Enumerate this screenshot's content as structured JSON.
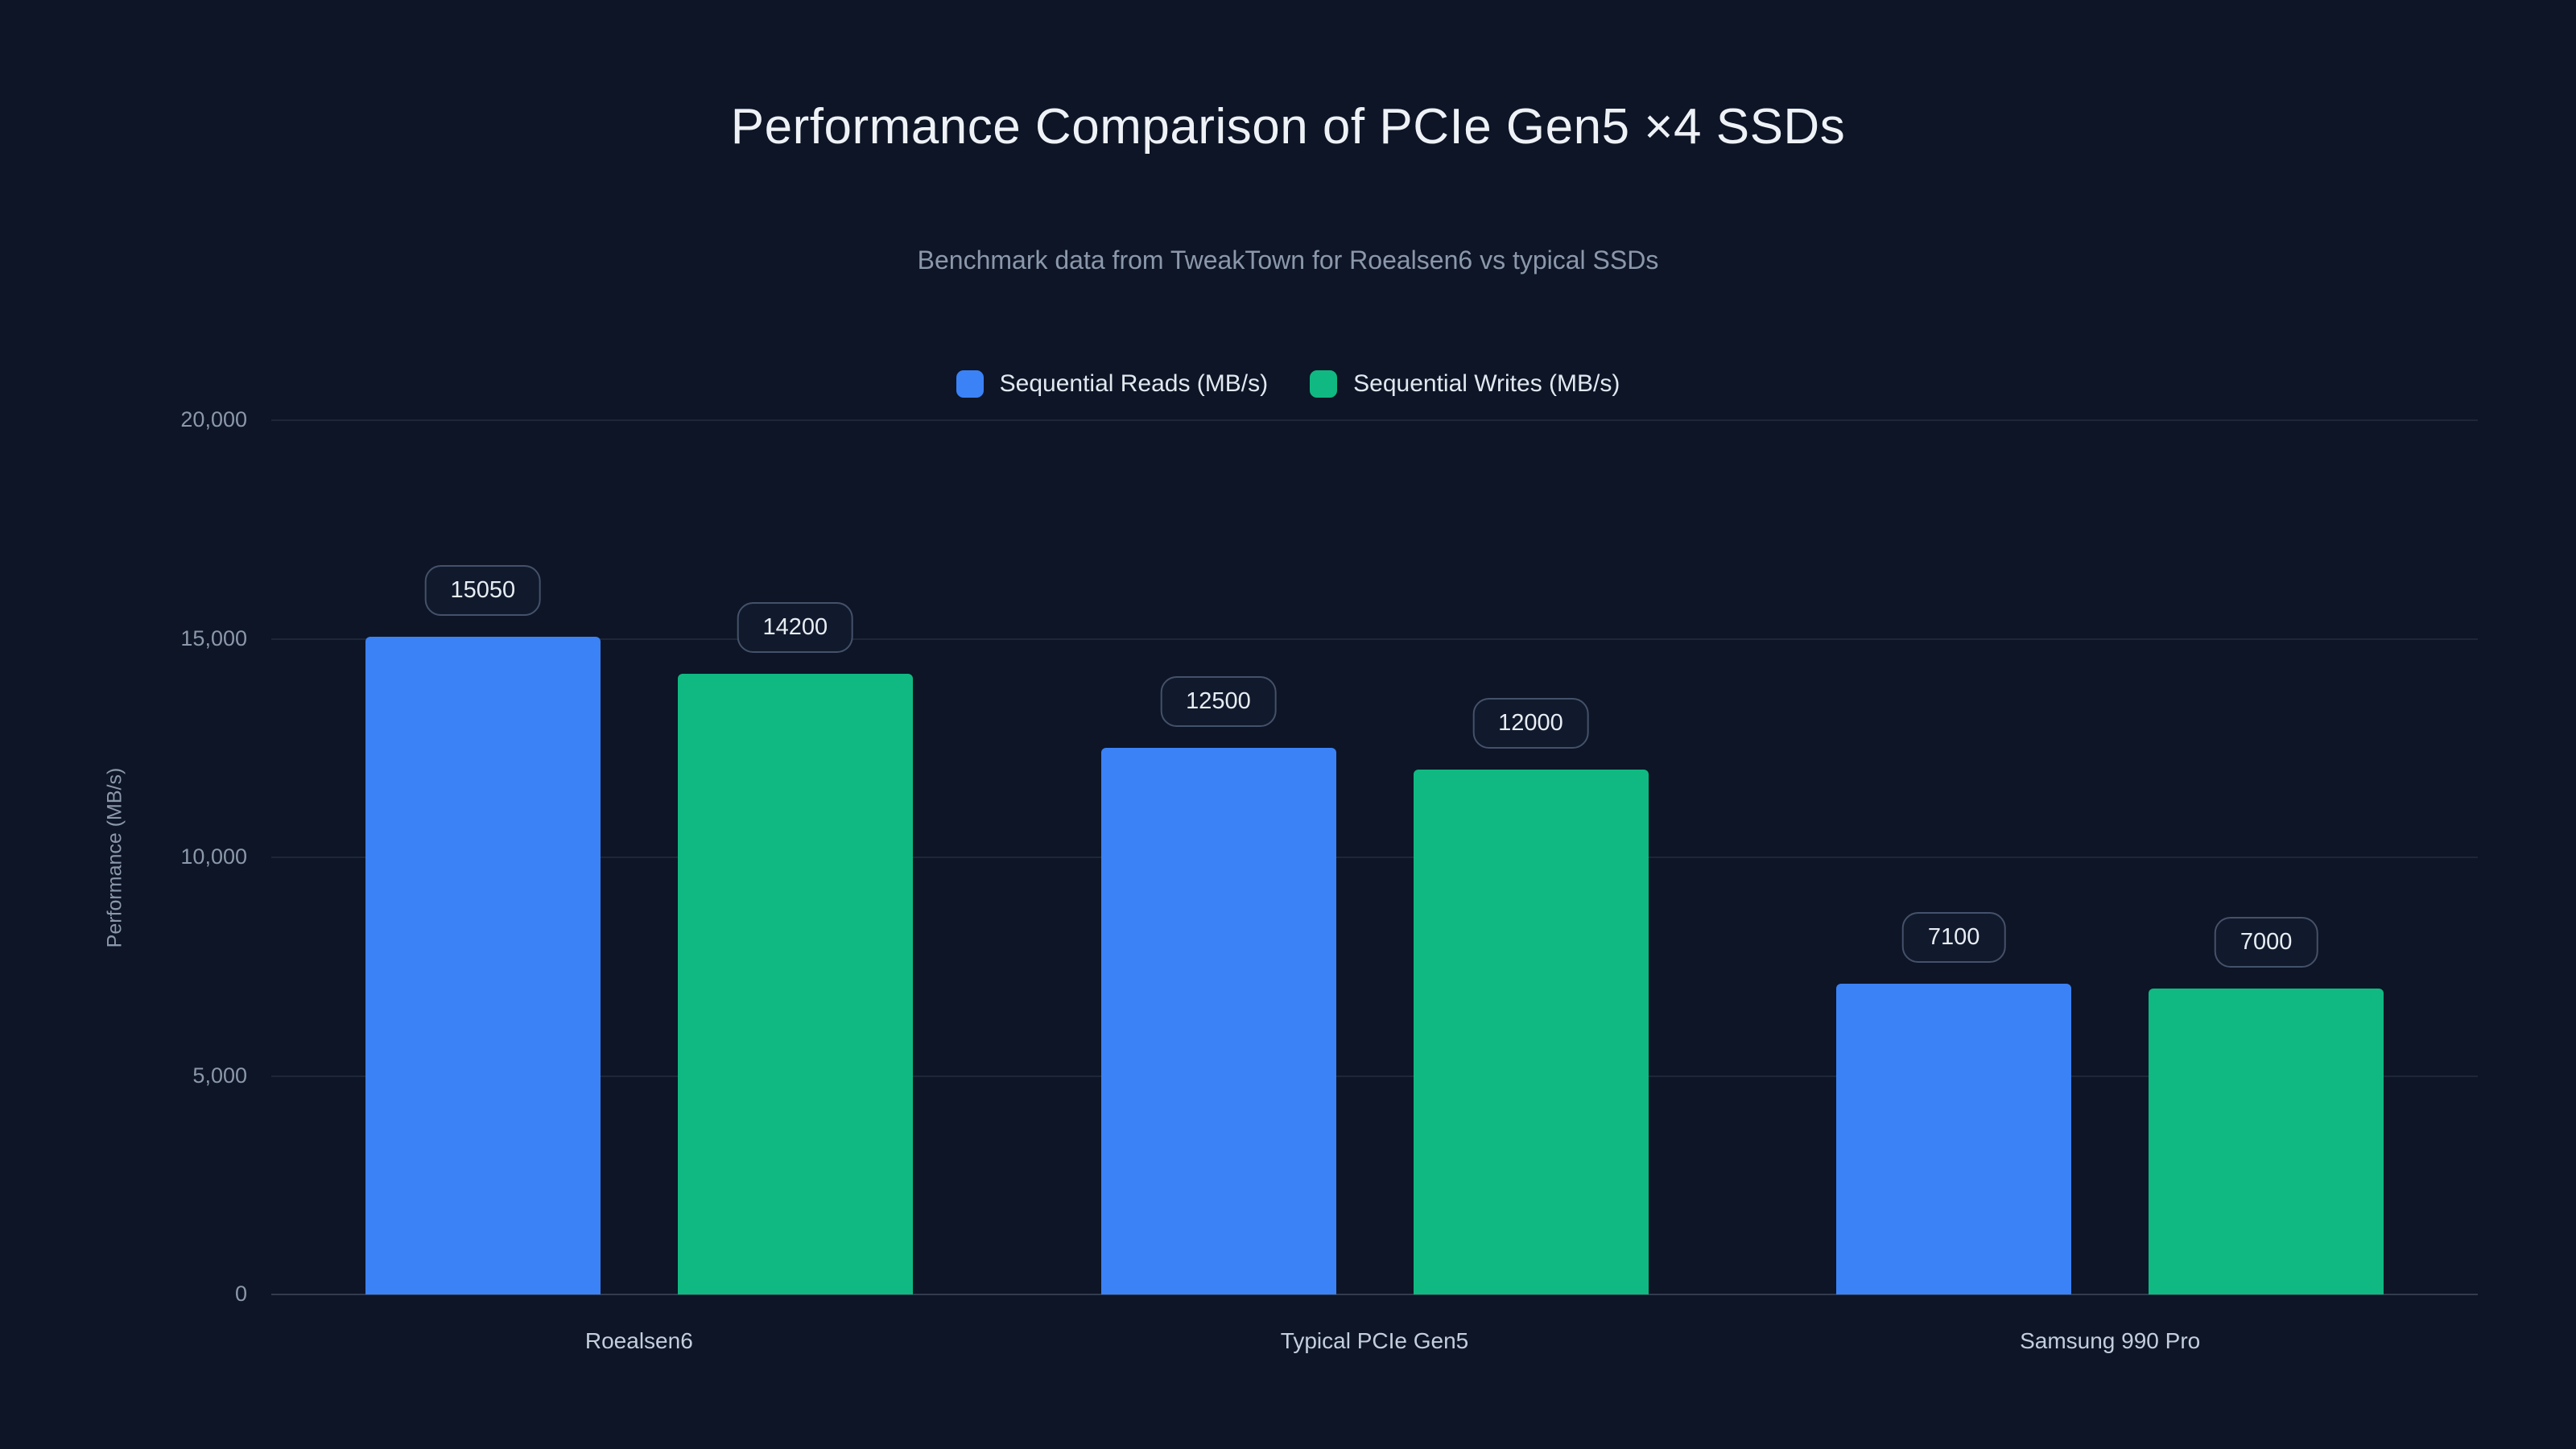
{
  "chart_data": {
    "type": "bar",
    "title": "Performance Comparison of PCIe Gen5 ×4 SSDs",
    "subtitle": "Benchmark data from TweakTown for Roealsen6 vs typical SSDs",
    "ylabel": "Performance (MB/s)",
    "categories": [
      "Roealsen6",
      "Typical PCIe Gen5",
      "Samsung 990 Pro"
    ],
    "series": [
      {
        "name": "Sequential Reads (MB/s)",
        "color": "#3b82f6",
        "values": [
          15050,
          12500,
          7100
        ]
      },
      {
        "name": "Sequential Writes (MB/s)",
        "color": "#10b981",
        "values": [
          14200,
          12000,
          7000
        ]
      }
    ],
    "ylim": [
      0,
      20000
    ],
    "yticks": [
      0,
      5000,
      10000,
      15000,
      20000
    ],
    "grid": true,
    "legend_position": "top",
    "background": "#0d1526"
  }
}
